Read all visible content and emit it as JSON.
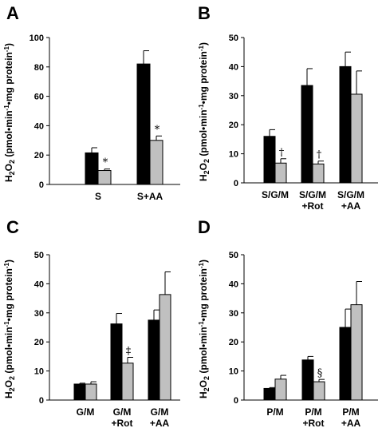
{
  "figure": {
    "colors": {
      "series1": "#000000",
      "series2": "#c0c0c0",
      "axis": "#000000",
      "background": "#ffffff"
    },
    "ylabel_parts": {
      "h": "H",
      "sub1": "2",
      "o": "O",
      "sub2": "2",
      "open": " (pmol",
      "dot1": "•",
      "min": "min",
      "sup1": "-1",
      "dot2": "•",
      "mg": "mg protein",
      "sup2": "-1",
      "close": ")"
    }
  },
  "chart_data": [
    {
      "type": "bar",
      "panel": "A",
      "ylim": [
        0,
        100
      ],
      "yticks": [
        0,
        20,
        40,
        60,
        80,
        100
      ],
      "ylabel": "H2O2 (pmol•min-1•mg protein-1)",
      "categories": [
        [
          "S"
        ],
        [
          "S+AA"
        ]
      ],
      "series": [
        {
          "values": [
            21.5,
            82
          ],
          "errors": [
            3.5,
            9
          ]
        },
        {
          "values": [
            9.5,
            30
          ],
          "errors": [
            1,
            3
          ]
        }
      ],
      "annotations": [
        {
          "category": 0,
          "series": 1,
          "text": "*"
        },
        {
          "category": 1,
          "series": 1,
          "text": "*"
        }
      ]
    },
    {
      "type": "bar",
      "panel": "B",
      "ylim": [
        0,
        50
      ],
      "yticks": [
        0,
        10,
        20,
        30,
        40,
        50
      ],
      "ylabel": "H2O2 (pmol•min-1•mg protein-1)",
      "categories": [
        [
          "S/G/M"
        ],
        [
          "S/G/M",
          "+Rot"
        ],
        [
          "S/G/M",
          "+AA"
        ]
      ],
      "series": [
        {
          "values": [
            16,
            33.5,
            40
          ],
          "errors": [
            2.3,
            5.8,
            5
          ]
        },
        {
          "values": [
            6.8,
            6.5,
            30.5
          ],
          "errors": [
            1.5,
            1,
            8
          ]
        }
      ],
      "annotations": [
        {
          "category": 0,
          "series": 1,
          "text": "†"
        },
        {
          "category": 1,
          "series": 1,
          "text": "†"
        }
      ]
    },
    {
      "type": "bar",
      "panel": "C",
      "ylim": [
        0,
        50
      ],
      "yticks": [
        0,
        10,
        20,
        30,
        40,
        50
      ],
      "ylabel": "H2O2 (pmol•min-1•mg protein-1)",
      "categories": [
        [
          "G/M"
        ],
        [
          "G/M",
          "+Rot"
        ],
        [
          "G/M",
          "+AA"
        ]
      ],
      "series": [
        {
          "values": [
            5.5,
            26.2,
            27.5
          ],
          "errors": [
            0.3,
            3.6,
            3.5
          ]
        },
        {
          "values": [
            5.5,
            12.7,
            36.3
          ],
          "errors": [
            0.8,
            2,
            7.8
          ]
        }
      ],
      "annotations": [
        {
          "category": 1,
          "series": 1,
          "text": "‡"
        }
      ]
    },
    {
      "type": "bar",
      "panel": "D",
      "ylim": [
        0,
        50
      ],
      "yticks": [
        0,
        10,
        20,
        30,
        40,
        50
      ],
      "ylabel": "H2O2 (pmol•min-1•mg protein-1)",
      "categories": [
        [
          "P/M"
        ],
        [
          "P/M",
          "+Rot"
        ],
        [
          "P/M",
          "+AA"
        ]
      ],
      "series": [
        {
          "values": [
            4,
            13.8,
            25
          ],
          "errors": [
            0.3,
            1.2,
            6.3
          ]
        },
        {
          "values": [
            7.2,
            6.3,
            32.8
          ],
          "errors": [
            1.3,
            0.8,
            8
          ]
        }
      ],
      "annotations": [
        {
          "category": 1,
          "series": 1,
          "text": "§"
        }
      ]
    }
  ]
}
